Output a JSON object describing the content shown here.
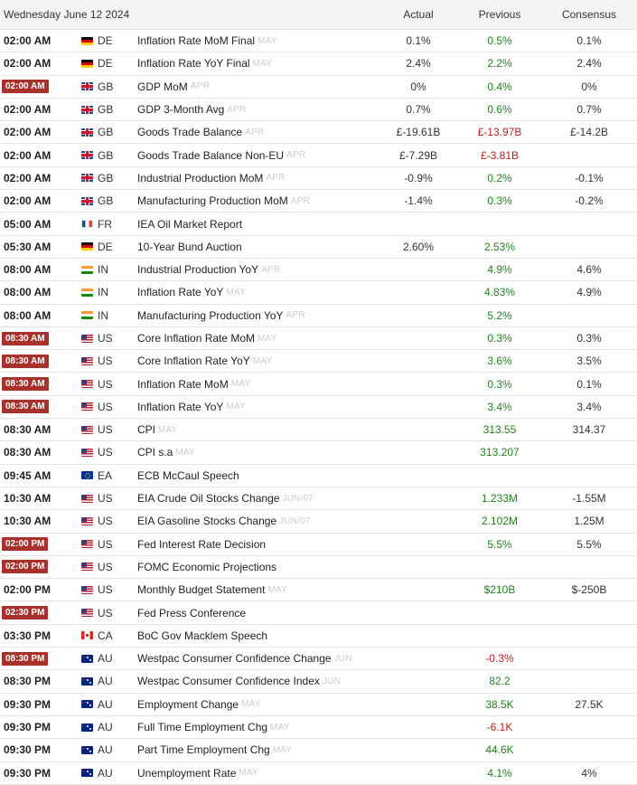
{
  "header": {
    "date": "Wednesday June 12 2024",
    "col_actual": "Actual",
    "col_previous": "Previous",
    "col_consensus": "Consensus"
  },
  "events": [
    {
      "time": "02:00 AM",
      "badge": false,
      "country": "DE",
      "event": "Inflation Rate MoM Final",
      "period": "MAY",
      "actual": "0.1%",
      "previous": "0.5%",
      "previous_tone": "pos",
      "consensus": "0.1%"
    },
    {
      "time": "02:00 AM",
      "badge": false,
      "country": "DE",
      "event": "Inflation Rate YoY Final",
      "period": "MAY",
      "actual": "2.4%",
      "previous": "2.2%",
      "previous_tone": "pos",
      "consensus": "2.4%"
    },
    {
      "time": "02:00 AM",
      "badge": true,
      "country": "GB",
      "event": "GDP MoM",
      "period": "APR",
      "actual": "0%",
      "previous": "0.4%",
      "previous_tone": "pos",
      "consensus": "0%"
    },
    {
      "time": "02:00 AM",
      "badge": false,
      "country": "GB",
      "event": "GDP 3-Month Avg",
      "period": "APR",
      "actual": "0.7%",
      "previous": "0.6%",
      "previous_tone": "pos",
      "consensus": "0.7%"
    },
    {
      "time": "02:00 AM",
      "badge": false,
      "country": "GB",
      "event": "Goods Trade Balance",
      "period": "APR",
      "actual": "£-19.61B",
      "previous": "£-13.97B",
      "previous_tone": "neg",
      "consensus": "£-14.2B"
    },
    {
      "time": "02:00 AM",
      "badge": false,
      "country": "GB",
      "event": "Goods Trade Balance Non-EU",
      "period": "APR",
      "actual": "£-7.29B",
      "previous": "£-3.81B",
      "previous_tone": "neg",
      "consensus": ""
    },
    {
      "time": "02:00 AM",
      "badge": false,
      "country": "GB",
      "event": "Industrial Production MoM",
      "period": "APR",
      "actual": "-0.9%",
      "previous": "0.2%",
      "previous_tone": "pos",
      "consensus": "-0.1%"
    },
    {
      "time": "02:00 AM",
      "badge": false,
      "country": "GB",
      "event": "Manufacturing Production MoM",
      "period": "APR",
      "actual": "-1.4%",
      "previous": "0.3%",
      "previous_tone": "pos",
      "consensus": "-0.2%"
    },
    {
      "time": "05:00 AM",
      "badge": false,
      "country": "FR",
      "event": "IEA Oil Market Report",
      "period": "",
      "actual": "",
      "previous": "",
      "previous_tone": "neu",
      "consensus": ""
    },
    {
      "time": "05:30 AM",
      "badge": false,
      "country": "DE",
      "event": "10-Year Bund Auction",
      "period": "",
      "actual": "2.60%",
      "previous": "2.53%",
      "previous_tone": "pos",
      "consensus": ""
    },
    {
      "time": "08:00 AM",
      "badge": false,
      "country": "IN",
      "event": "Industrial Production YoY",
      "period": "APR",
      "actual": "",
      "previous": "4.9%",
      "previous_tone": "pos",
      "consensus": "4.6%"
    },
    {
      "time": "08:00 AM",
      "badge": false,
      "country": "IN",
      "event": "Inflation Rate YoY",
      "period": "MAY",
      "actual": "",
      "previous": "4.83%",
      "previous_tone": "pos",
      "consensus": "4.9%"
    },
    {
      "time": "08:00 AM",
      "badge": false,
      "country": "IN",
      "event": "Manufacturing Production YoY",
      "period": "APR",
      "actual": "",
      "previous": "5.2%",
      "previous_tone": "pos",
      "consensus": ""
    },
    {
      "time": "08:30 AM",
      "badge": true,
      "country": "US",
      "event": "Core Inflation Rate MoM",
      "period": "MAY",
      "actual": "",
      "previous": "0.3%",
      "previous_tone": "pos",
      "consensus": "0.3%"
    },
    {
      "time": "08:30 AM",
      "badge": true,
      "country": "US",
      "event": "Core Inflation Rate YoY",
      "period": "MAY",
      "actual": "",
      "previous": "3.6%",
      "previous_tone": "pos",
      "consensus": "3.5%"
    },
    {
      "time": "08:30 AM",
      "badge": true,
      "country": "US",
      "event": "Inflation Rate MoM",
      "period": "MAY",
      "actual": "",
      "previous": "0.3%",
      "previous_tone": "pos",
      "consensus": "0.1%"
    },
    {
      "time": "08:30 AM",
      "badge": true,
      "country": "US",
      "event": "Inflation Rate YoY",
      "period": "MAY",
      "actual": "",
      "previous": "3.4%",
      "previous_tone": "pos",
      "consensus": "3.4%"
    },
    {
      "time": "08:30 AM",
      "badge": false,
      "country": "US",
      "event": "CPI",
      "period": "MAY",
      "actual": "",
      "previous": "313.55",
      "previous_tone": "pos",
      "consensus": "314.37"
    },
    {
      "time": "08:30 AM",
      "badge": false,
      "country": "US",
      "event": "CPI s.a",
      "period": "MAY",
      "actual": "",
      "previous": "313.207",
      "previous_tone": "pos",
      "consensus": ""
    },
    {
      "time": "09:45 AM",
      "badge": false,
      "country": "EA",
      "event": "ECB McCaul Speech",
      "period": "",
      "actual": "",
      "previous": "",
      "previous_tone": "neu",
      "consensus": ""
    },
    {
      "time": "10:30 AM",
      "badge": false,
      "country": "US",
      "event": "EIA Crude Oil Stocks Change",
      "period": "JUN/07",
      "actual": "",
      "previous": "1.233M",
      "previous_tone": "pos",
      "consensus": "-1.55M"
    },
    {
      "time": "10:30 AM",
      "badge": false,
      "country": "US",
      "event": "EIA Gasoline Stocks Change",
      "period": "JUN/07",
      "actual": "",
      "previous": "2.102M",
      "previous_tone": "pos",
      "consensus": "1.25M"
    },
    {
      "time": "02:00 PM",
      "badge": true,
      "country": "US",
      "event": "Fed Interest Rate Decision",
      "period": "",
      "actual": "",
      "previous": "5.5%",
      "previous_tone": "pos",
      "consensus": "5.5%"
    },
    {
      "time": "02:00 PM",
      "badge": true,
      "country": "US",
      "event": "FOMC Economic Projections",
      "period": "",
      "actual": "",
      "previous": "",
      "previous_tone": "neu",
      "consensus": ""
    },
    {
      "time": "02:00 PM",
      "badge": false,
      "country": "US",
      "event": "Monthly Budget Statement",
      "period": "MAY",
      "actual": "",
      "previous": "$210B",
      "previous_tone": "pos",
      "consensus": "$-250B"
    },
    {
      "time": "02:30 PM",
      "badge": true,
      "country": "US",
      "event": "Fed Press Conference",
      "period": "",
      "actual": "",
      "previous": "",
      "previous_tone": "neu",
      "consensus": ""
    },
    {
      "time": "03:30 PM",
      "badge": false,
      "country": "CA",
      "event": "BoC Gov Macklem Speech",
      "period": "",
      "actual": "",
      "previous": "",
      "previous_tone": "neu",
      "consensus": ""
    },
    {
      "time": "08:30 PM",
      "badge": true,
      "country": "AU",
      "event": "Westpac Consumer Confidence Change",
      "period": "JUN",
      "actual": "",
      "previous": "-0.3%",
      "previous_tone": "neg",
      "consensus": ""
    },
    {
      "time": "08:30 PM",
      "badge": false,
      "country": "AU",
      "event": "Westpac Consumer Confidence Index",
      "period": "JUN",
      "actual": "",
      "previous": "82.2",
      "previous_tone": "pos",
      "consensus": ""
    },
    {
      "time": "09:30 PM",
      "badge": false,
      "country": "AU",
      "event": "Employment Change",
      "period": "MAY",
      "actual": "",
      "previous": "38.5K",
      "previous_tone": "pos",
      "consensus": "27.5K"
    },
    {
      "time": "09:30 PM",
      "badge": false,
      "country": "AU",
      "event": "Full Time Employment Chg",
      "period": "MAY",
      "actual": "",
      "previous": "-6.1K",
      "previous_tone": "neg",
      "consensus": ""
    },
    {
      "time": "09:30 PM",
      "badge": false,
      "country": "AU",
      "event": "Part Time Employment Chg",
      "period": "MAY",
      "actual": "",
      "previous": "44.6K",
      "previous_tone": "pos",
      "consensus": ""
    },
    {
      "time": "09:30 PM",
      "badge": false,
      "country": "AU",
      "event": "Unemployment Rate",
      "period": "MAY",
      "actual": "",
      "previous": "4.1%",
      "previous_tone": "pos",
      "consensus": "4%"
    }
  ],
  "colors": {
    "badge_bg": "#a8312c",
    "positive": "#217f1f",
    "negative": "#b3221c",
    "period_text": "#cccccc"
  }
}
